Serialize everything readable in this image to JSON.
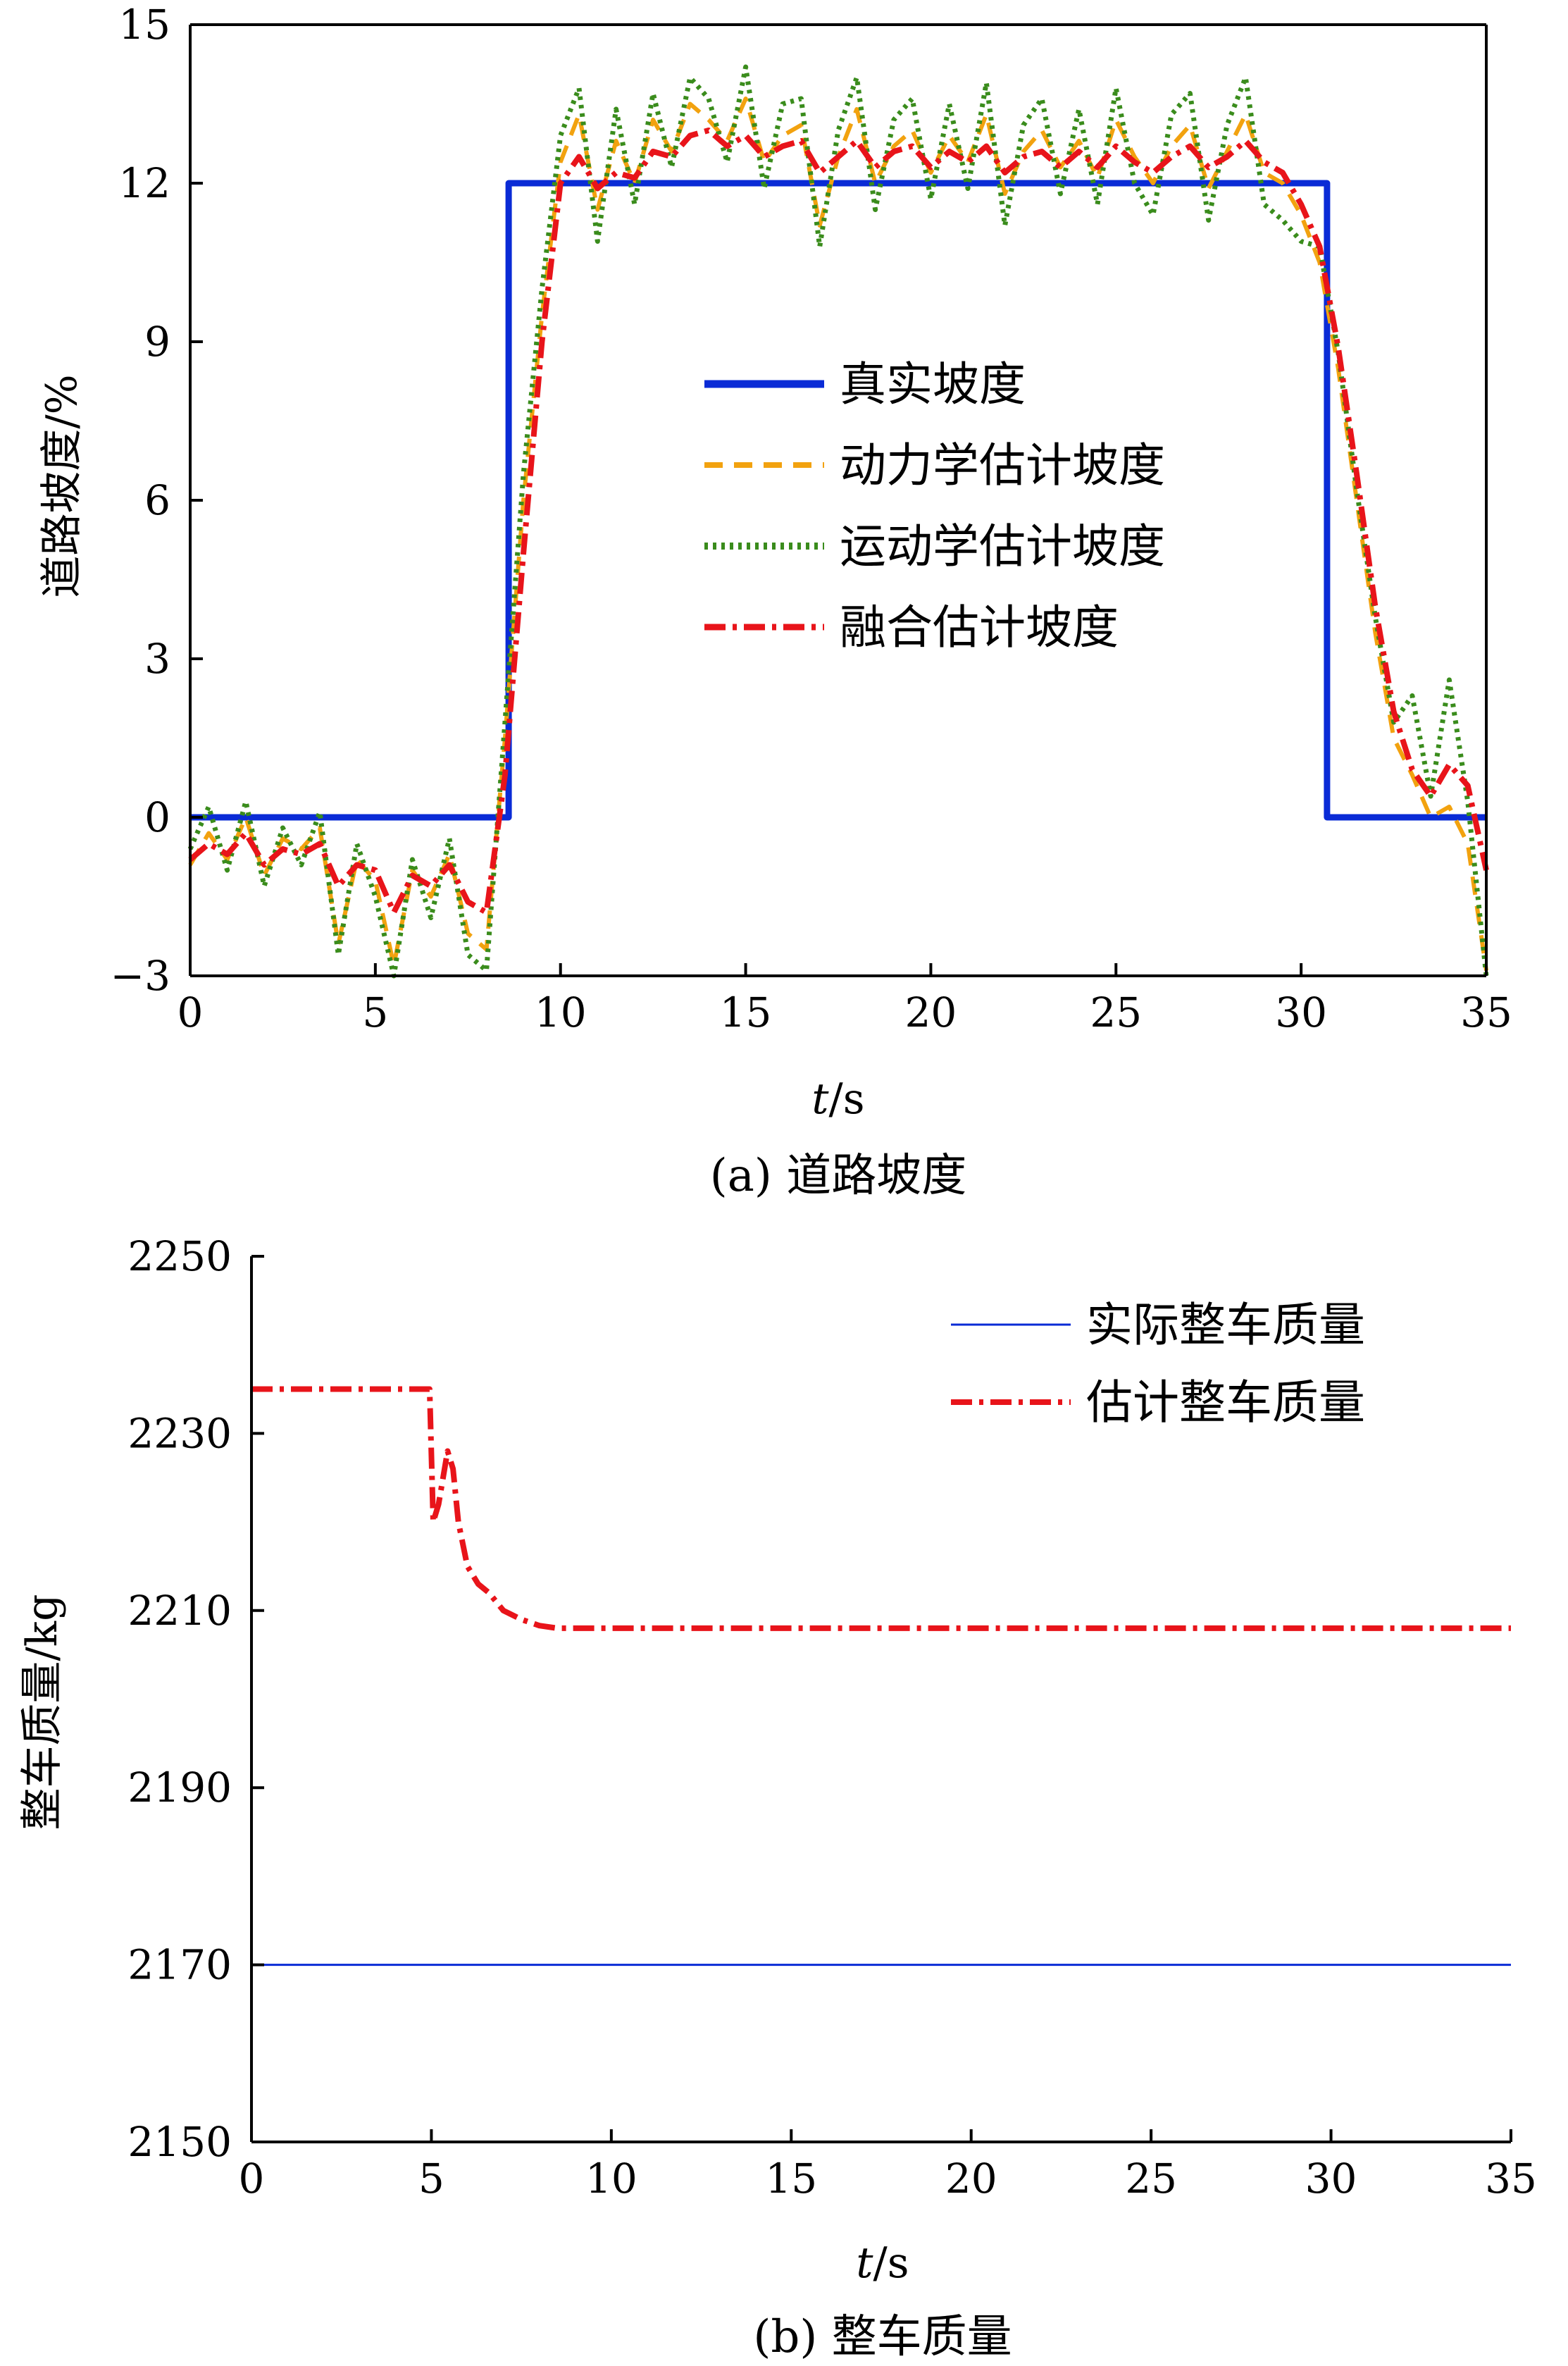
{
  "chart_data": [
    {
      "type": "line",
      "caption": "(a) 道路坡度",
      "xlabel_var": "t",
      "xlabel_unit": "/s",
      "ylabel": "道路坡度/%",
      "xlim": [
        0,
        35
      ],
      "ylim": [
        -3,
        15
      ],
      "x_ticks": [
        "0",
        "5",
        "10",
        "15",
        "20",
        "25",
        "30",
        "35"
      ],
      "y_ticks": [
        "−3",
        "0",
        "3",
        "6",
        "9",
        "12",
        "15"
      ],
      "grid": false,
      "legend_position": "center-right",
      "series": [
        {
          "name": "真实坡度",
          "color": "#0a2bd6",
          "style": "solid",
          "x": [
            0,
            8.6,
            8.6,
            30.7,
            30.7,
            35
          ],
          "y": [
            0,
            0,
            12,
            12,
            0,
            0
          ]
        },
        {
          "name": "动力学估计坡度",
          "color": "#f2a20f",
          "style": "dashed",
          "x": [
            0,
            0.5,
            1,
            1.5,
            2,
            2.5,
            3,
            3.5,
            4,
            4.5,
            5,
            5.5,
            6,
            6.5,
            7,
            7.5,
            8,
            8.5,
            9,
            9.5,
            10,
            10.5,
            11,
            11.5,
            12,
            12.5,
            13,
            13.5,
            14,
            14.5,
            15,
            15.5,
            16,
            16.5,
            17,
            17.5,
            18,
            18.5,
            19,
            19.5,
            20,
            20.5,
            21,
            21.5,
            22,
            22.5,
            23,
            23.5,
            24,
            24.5,
            25,
            25.5,
            26,
            26.5,
            27,
            27.5,
            28,
            28.5,
            29,
            29.5,
            30,
            30.5,
            31,
            31.5,
            32,
            32.5,
            33,
            33.5,
            34,
            34.5,
            35
          ],
          "y": [
            -0.9,
            -0.3,
            -0.8,
            0.0,
            -1.1,
            -0.4,
            -0.6,
            -0.2,
            -2.4,
            -0.8,
            -1.2,
            -2.8,
            -1.0,
            -1.5,
            -0.7,
            -2.2,
            -2.5,
            1.5,
            6.0,
            9.5,
            12.4,
            13.3,
            11.5,
            12.8,
            12.0,
            13.2,
            12.6,
            13.5,
            13.2,
            12.8,
            13.6,
            12.4,
            12.9,
            13.1,
            11.2,
            12.5,
            13.4,
            12.0,
            12.7,
            13.0,
            12.2,
            12.9,
            12.4,
            13.3,
            11.8,
            12.6,
            13.0,
            12.3,
            12.8,
            12.1,
            13.2,
            12.5,
            12.0,
            12.7,
            13.1,
            11.9,
            12.6,
            13.3,
            12.2,
            12.0,
            11.4,
            10.5,
            8.5,
            6.0,
            3.5,
            1.5,
            0.8,
            0.0,
            0.2,
            -0.5,
            -2.9
          ]
        },
        {
          "name": "运动学估计坡度",
          "color": "#3a8c1c",
          "style": "dotted",
          "x": [
            0,
            0.5,
            1,
            1.5,
            2,
            2.5,
            3,
            3.5,
            4,
            4.5,
            5,
            5.5,
            6,
            6.5,
            7,
            7.5,
            8,
            8.5,
            9,
            9.5,
            10,
            10.5,
            11,
            11.5,
            12,
            12.5,
            13,
            13.5,
            14,
            14.5,
            15,
            15.5,
            16,
            16.5,
            17,
            17.5,
            18,
            18.5,
            19,
            19.5,
            20,
            20.5,
            21,
            21.5,
            22,
            22.5,
            23,
            23.5,
            24,
            24.5,
            25,
            25.5,
            26,
            26.5,
            27,
            27.5,
            28,
            28.5,
            29,
            29.5,
            30,
            30.5,
            31,
            31.5,
            32,
            32.5,
            33,
            33.5,
            34,
            34.5,
            35
          ],
          "y": [
            -0.6,
            0.2,
            -1.0,
            0.3,
            -1.3,
            -0.2,
            -0.9,
            0.1,
            -2.6,
            -0.5,
            -1.5,
            -3.0,
            -0.8,
            -1.9,
            -0.4,
            -2.6,
            -2.9,
            1.8,
            6.5,
            10.0,
            12.9,
            13.8,
            10.9,
            13.4,
            11.6,
            13.7,
            12.3,
            14.0,
            13.6,
            12.4,
            14.2,
            11.9,
            13.5,
            13.6,
            10.8,
            13.0,
            14.0,
            11.5,
            13.2,
            13.6,
            11.7,
            13.5,
            11.9,
            13.9,
            11.2,
            13.1,
            13.6,
            11.8,
            13.4,
            11.6,
            13.8,
            12.0,
            11.4,
            13.3,
            13.7,
            11.3,
            13.1,
            14.0,
            11.6,
            11.3,
            10.9,
            10.8,
            8.8,
            6.2,
            3.8,
            1.8,
            2.3,
            0.4,
            2.6,
            0.3,
            -3.0
          ]
        },
        {
          "name": "融合估计坡度",
          "color": "#e8141a",
          "style": "dash-dot",
          "x": [
            0,
            0.5,
            1,
            1.5,
            2,
            2.5,
            3,
            3.5,
            4,
            4.5,
            5,
            5.5,
            6,
            6.5,
            7,
            7.5,
            8,
            8.5,
            9,
            9.5,
            10,
            10.5,
            11,
            11.5,
            12,
            12.5,
            13,
            13.5,
            14,
            14.5,
            15,
            15.5,
            16,
            16.5,
            17,
            17.5,
            18,
            18.5,
            19,
            19.5,
            20,
            20.5,
            21,
            21.5,
            22,
            22.5,
            23,
            23.5,
            24,
            24.5,
            25,
            25.5,
            26,
            26.5,
            27,
            27.5,
            28,
            28.5,
            29,
            29.5,
            30,
            30.5,
            31,
            31.5,
            32,
            32.5,
            33,
            33.5,
            34,
            34.5,
            35
          ],
          "y": [
            -0.8,
            -0.5,
            -0.7,
            -0.3,
            -0.9,
            -0.6,
            -0.7,
            -0.5,
            -1.3,
            -0.9,
            -1.0,
            -1.8,
            -1.1,
            -1.3,
            -0.9,
            -1.6,
            -1.8,
            0.8,
            5.0,
            9.0,
            12.0,
            12.5,
            11.9,
            12.2,
            12.1,
            12.6,
            12.5,
            12.9,
            13.0,
            12.7,
            12.9,
            12.5,
            12.7,
            12.8,
            12.2,
            12.5,
            12.8,
            12.3,
            12.6,
            12.7,
            12.3,
            12.6,
            12.4,
            12.7,
            12.2,
            12.5,
            12.6,
            12.3,
            12.6,
            12.3,
            12.7,
            12.4,
            12.2,
            12.5,
            12.7,
            12.3,
            12.5,
            12.8,
            12.4,
            12.2,
            11.6,
            10.8,
            8.9,
            6.5,
            4.0,
            2.0,
            0.9,
            0.4,
            1.0,
            0.6,
            -1.0
          ]
        }
      ]
    },
    {
      "type": "line",
      "caption": "(b) 整车质量",
      "xlabel_var": "t",
      "xlabel_unit": "/s",
      "ylabel": "整车质量/kg",
      "xlim": [
        0,
        35
      ],
      "ylim": [
        2150,
        2250
      ],
      "x_ticks": [
        "0",
        "5",
        "10",
        "15",
        "20",
        "25",
        "30",
        "35"
      ],
      "y_ticks": [
        "2150",
        "2170",
        "2190",
        "2210",
        "2230",
        "2250"
      ],
      "grid": false,
      "legend_position": "top-right",
      "series": [
        {
          "name": "实际整车质量",
          "color": "#0a2bd6",
          "style": "solid",
          "x": [
            0,
            35
          ],
          "y": [
            2170,
            2170
          ]
        },
        {
          "name": "估计整车质量",
          "color": "#e8141a",
          "style": "dash-dot",
          "x": [
            0,
            4.95,
            5.05,
            5.2,
            5.45,
            5.6,
            5.75,
            6.0,
            6.3,
            6.6,
            7.0,
            7.5,
            8.0,
            8.5,
            9.0,
            10,
            35
          ],
          "y": [
            2235,
            2235,
            2220,
            2222,
            2228,
            2226,
            2220,
            2215,
            2213,
            2212,
            2210,
            2209,
            2208.3,
            2208,
            2208,
            2208,
            2208
          ]
        }
      ]
    }
  ]
}
